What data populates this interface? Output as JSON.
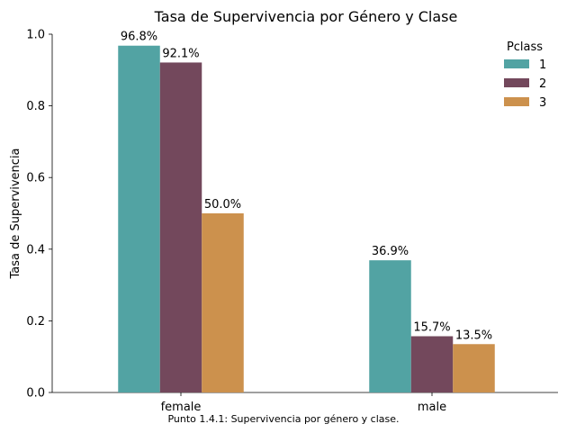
{
  "chart_data": {
    "type": "bar",
    "title": "Tasa de Supervivencia por Género y Clase",
    "xlabel": "",
    "ylabel": "Tasa de Supervivencia",
    "ylim": [
      0,
      1.0
    ],
    "yticks": [
      "0.0",
      "0.2",
      "0.4",
      "0.6",
      "0.8",
      "1.0"
    ],
    "yticks_values": [
      0,
      0.2,
      0.4,
      0.6,
      0.8,
      1.0
    ],
    "categories": [
      "female",
      "male"
    ],
    "legend": {
      "title": "Pclass",
      "placement": "top-right"
    },
    "series": [
      {
        "name": "1",
        "color": "#52a3a3",
        "values": [
          0.968,
          0.369
        ],
        "labels": [
          "96.8%",
          "36.9%"
        ]
      },
      {
        "name": "2",
        "color": "#73485c",
        "values": [
          0.921,
          0.157
        ],
        "labels": [
          "92.1%",
          "15.7%"
        ]
      },
      {
        "name": "3",
        "color": "#cc914d",
        "values": [
          0.5,
          0.135
        ],
        "labels": [
          "50.0%",
          "13.5%"
        ]
      }
    ],
    "grid": false
  },
  "caption": "Punto 1.4.1: Supervivencia por género y clase."
}
